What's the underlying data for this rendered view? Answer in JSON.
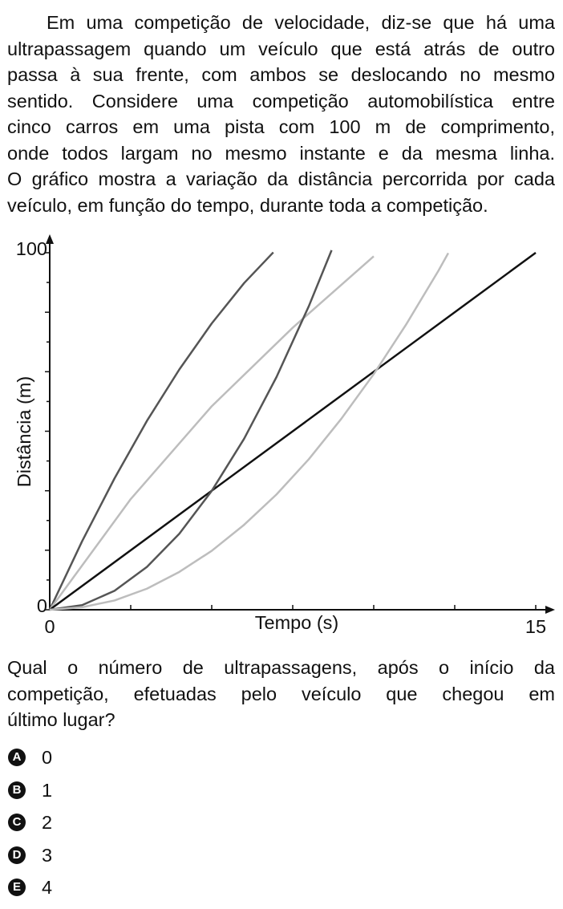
{
  "paragraph_lines": [
    "Em uma competição de velocidade, diz-se que há uma",
    "ultrapassagem quando um veículo que está atrás de outro",
    "passa à sua frente, com ambos se deslocando no mesmo",
    "sentido. Considere uma competição automobilística entre",
    "cinco carros em uma pista com 100 m de comprimento,",
    "onde todos largam no mesmo instante e da mesma linha.",
    "O gráfico mostra a variação da distância percorrida por cada",
    "veículo, em função do tempo, durante toda a competição."
  ],
  "chart_data": {
    "type": "line",
    "x_label": "Tempo (s)",
    "y_label": "Distância (m)",
    "xlim": [
      0,
      15
    ],
    "ylim": [
      0,
      100
    ],
    "xticks": [
      0,
      15
    ],
    "yticks": [
      0,
      100
    ],
    "xtick_marks": [
      2.5,
      5,
      7.5,
      10,
      12.5
    ],
    "ytick_marks": [
      8.33,
      16.67,
      25,
      33.33,
      41.67,
      50,
      58.33,
      66.67,
      75,
      83.33,
      91.67
    ],
    "series": [
      {
        "color": "#555555",
        "x": [
          0,
          1,
          2,
          3,
          4,
          5,
          6,
          6.9
        ],
        "values": [
          0,
          19.2,
          36.8,
          52.9,
          67.3,
          80.2,
          91.5,
          100.1
        ]
      },
      {
        "color": "#bdbdbd",
        "x": [
          0,
          2.5,
          5,
          7.5,
          10
        ],
        "values": [
          0,
          31,
          57,
          79,
          99
        ]
      },
      {
        "color": "#111111",
        "x": [
          0,
          15
        ],
        "values": [
          0,
          100
        ]
      },
      {
        "color": "#555555",
        "x": [
          0,
          1,
          2,
          3,
          4,
          5,
          6,
          7,
          8,
          8.7
        ],
        "values": [
          0,
          1.3,
          5.3,
          12,
          21.3,
          33.3,
          47.9,
          65.2,
          85.1,
          100.7
        ]
      },
      {
        "color": "#bdbdbd",
        "x": [
          0,
          1,
          2,
          3,
          4,
          5,
          6,
          7,
          8,
          9,
          10,
          11,
          12,
          12.3
        ],
        "values": [
          0,
          0.7,
          2.6,
          5.9,
          10.6,
          16.5,
          23.8,
          32.3,
          42.2,
          53.5,
          66,
          79.9,
          95,
          99.9
        ]
      }
    ]
  },
  "question_lines": [
    "Qual o número de ultrapassagens, após o início da",
    "competição, efetuadas pelo veículo que chegou em",
    "último lugar?"
  ],
  "options": [
    {
      "letter": "A",
      "text": "0"
    },
    {
      "letter": "B",
      "text": "1"
    },
    {
      "letter": "C",
      "text": "2"
    },
    {
      "letter": "D",
      "text": "3"
    },
    {
      "letter": "E",
      "text": "4"
    }
  ]
}
